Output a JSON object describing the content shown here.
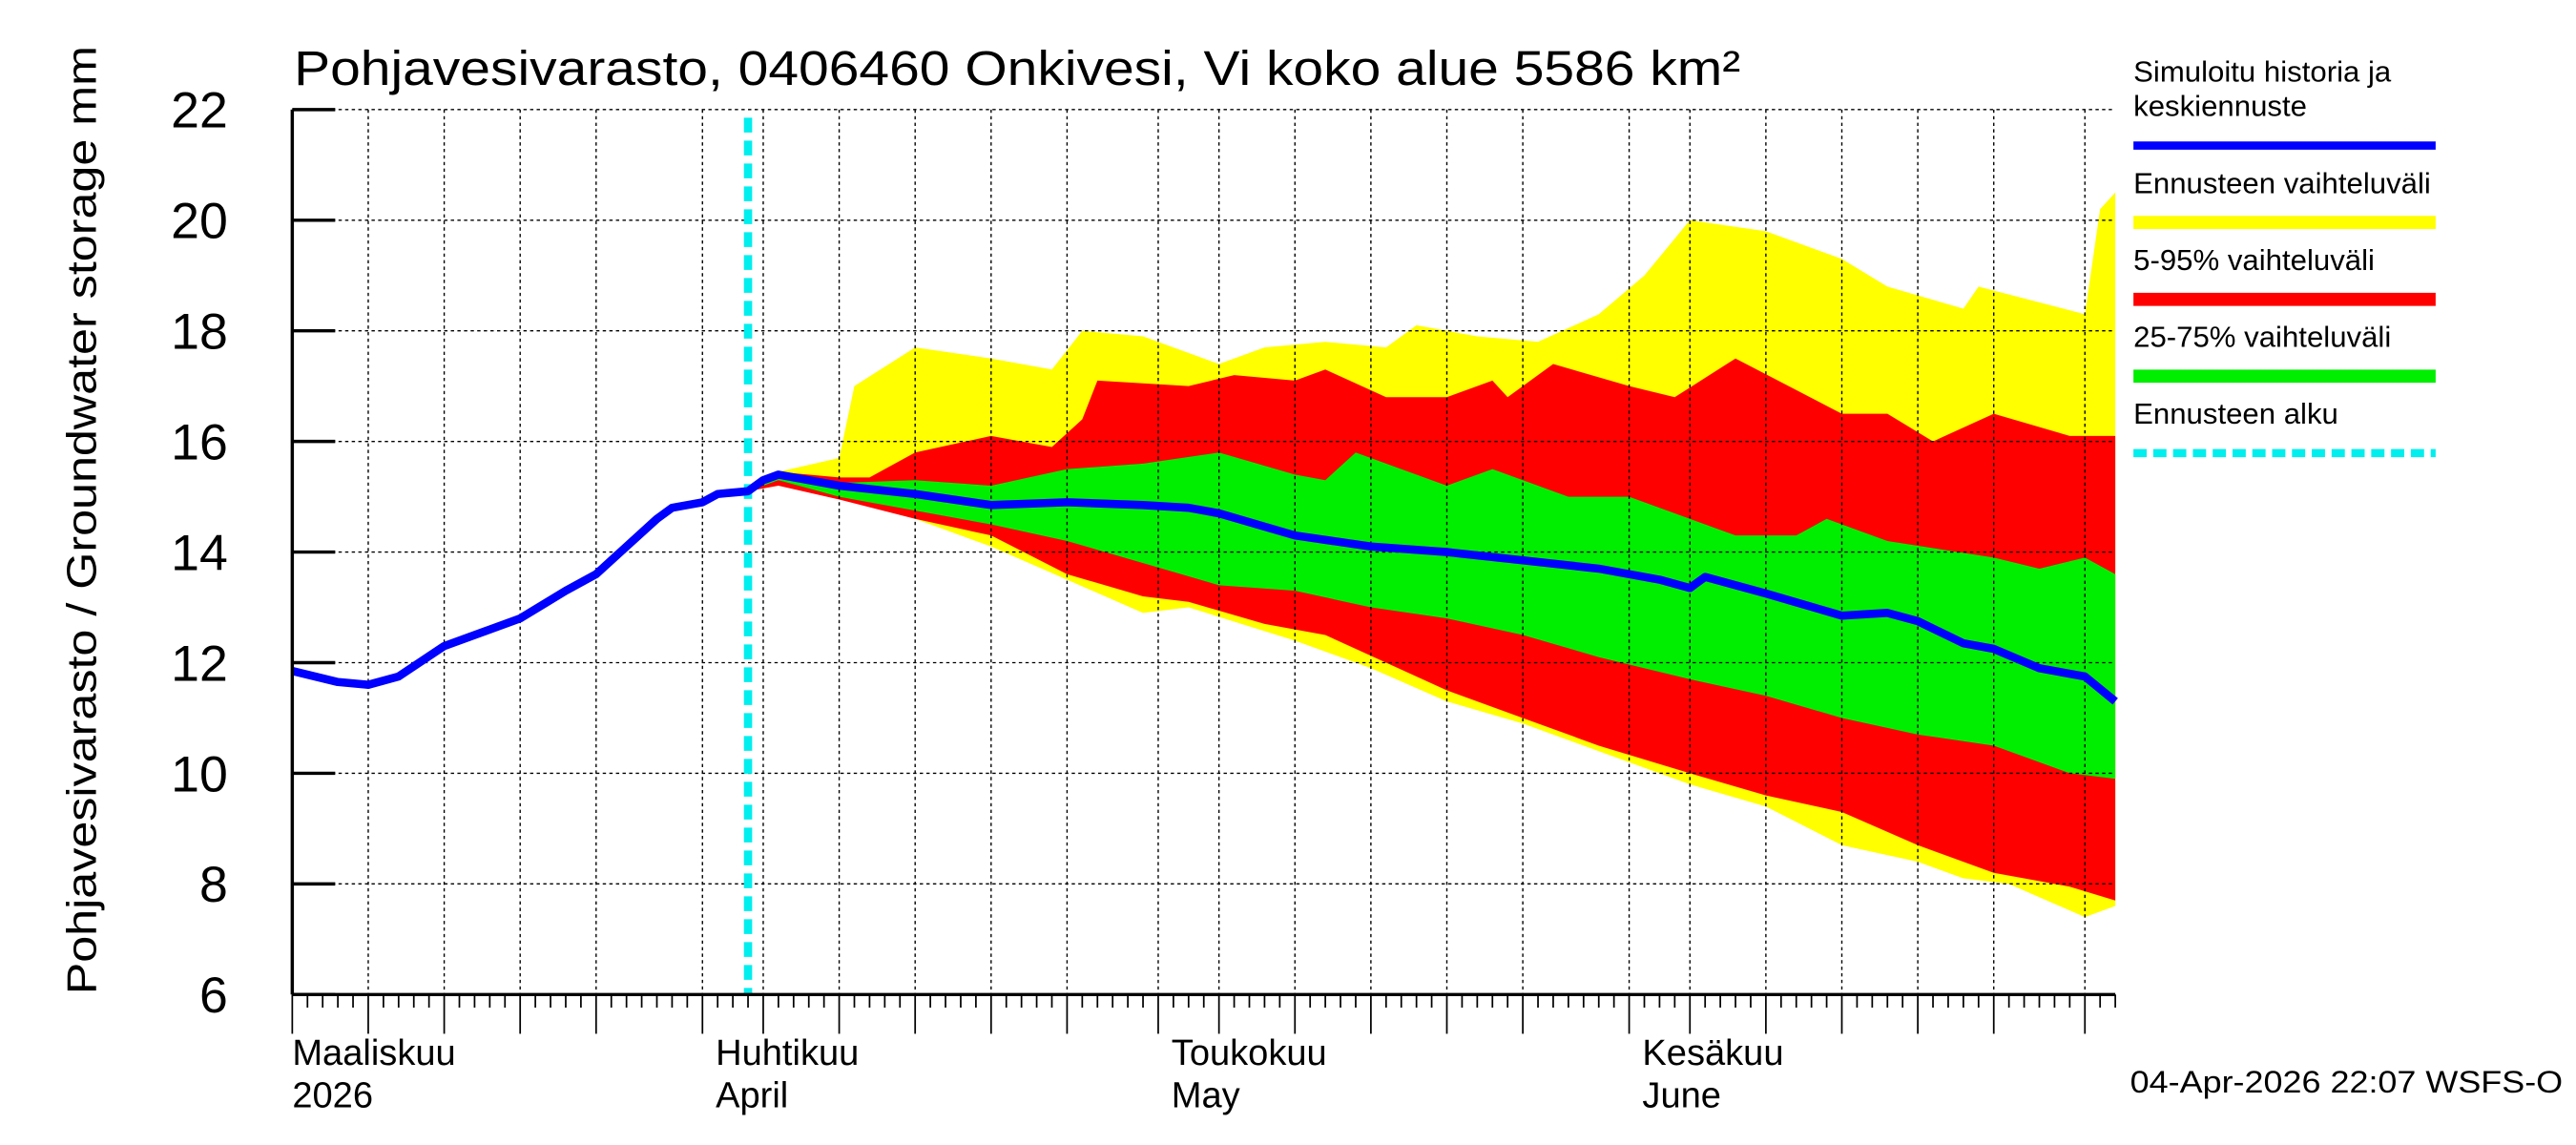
{
  "chart_data": {
    "type": "area",
    "title": "Pohjavesivarasto, 0406460 Onkivesi, Vi koko alue 5586 km²",
    "ylabel": "Pohjavesivarasto / Groundwater storage   mm",
    "ylim": [
      6,
      22
    ],
    "yticks": [
      6,
      8,
      10,
      12,
      14,
      16,
      18,
      20,
      22
    ],
    "xlim": [
      "2026-03-05",
      "2026-07-03"
    ],
    "grid": true,
    "legend_placement": "right",
    "month_labels": [
      {
        "line1": "Maaliskuu",
        "line2": "2026",
        "date": "2026-03-01"
      },
      {
        "line1": "Huhtikuu",
        "line2": "April",
        "date": "2026-04-01"
      },
      {
        "line1": "Toukokuu",
        "line2": "May",
        "date": "2026-05-01"
      },
      {
        "line1": "Kesäkuu",
        "line2": "June",
        "date": "2026-06-01"
      }
    ],
    "forecast_start": "2026-04-04",
    "footer": "04-Apr-2026 22:07 WSFS-O",
    "legend": [
      {
        "label": "Simuloitu historia ja",
        "label2": "keskiennuste",
        "color": "#0000ff",
        "style": "line"
      },
      {
        "label": "Ennusteen vaihteluväli",
        "color": "#ffff00",
        "style": "band"
      },
      {
        "label": "5-95% vaihteluväli",
        "color": "#ff0000",
        "style": "band"
      },
      {
        "label": "25-75% vaihteluväli",
        "color": "#00ee00",
        "style": "band"
      },
      {
        "label": "Ennusteen alku",
        "color": "#00eeee",
        "style": "dashed"
      }
    ],
    "bands": [
      {
        "name": "Ennusteen vaihteluväli",
        "color": "#ffff00",
        "upper": [
          [
            "2026-04-04",
            15.1
          ],
          [
            "2026-04-06",
            15.45
          ],
          [
            "2026-04-10",
            15.7
          ],
          [
            "2026-04-11",
            17.0
          ],
          [
            "2026-04-15",
            17.7
          ],
          [
            "2026-04-20",
            17.5
          ],
          [
            "2026-04-24",
            17.3
          ],
          [
            "2026-04-26",
            18.0
          ],
          [
            "2026-04-30",
            17.9
          ],
          [
            "2026-05-05",
            17.4
          ],
          [
            "2026-05-08",
            17.7
          ],
          [
            "2026-05-12",
            17.8
          ],
          [
            "2026-05-16",
            17.7
          ],
          [
            "2026-05-18",
            18.1
          ],
          [
            "2026-05-22",
            17.9
          ],
          [
            "2026-05-26",
            17.8
          ],
          [
            "2026-05-30",
            18.3
          ],
          [
            "2026-06-02",
            19.0
          ],
          [
            "2026-06-05",
            20.0
          ],
          [
            "2026-06-10",
            19.8
          ],
          [
            "2026-06-15",
            19.3
          ],
          [
            "2026-06-18",
            18.8
          ],
          [
            "2026-06-23",
            18.4
          ],
          [
            "2026-06-24",
            18.8
          ],
          [
            "2026-07-01",
            18.3
          ],
          [
            "2026-07-02",
            20.2
          ],
          [
            "2026-07-03",
            20.5
          ]
        ],
        "lower": [
          [
            "2026-04-04",
            15.1
          ],
          [
            "2026-04-06",
            15.2
          ],
          [
            "2026-04-10",
            15.0
          ],
          [
            "2026-04-15",
            14.6
          ],
          [
            "2026-04-20",
            14.1
          ],
          [
            "2026-04-25",
            13.5
          ],
          [
            "2026-04-30",
            12.9
          ],
          [
            "2026-05-03",
            13.0
          ],
          [
            "2026-05-10",
            12.4
          ],
          [
            "2026-05-15",
            11.9
          ],
          [
            "2026-05-20",
            11.3
          ],
          [
            "2026-05-25",
            10.9
          ],
          [
            "2026-05-30",
            10.4
          ],
          [
            "2026-06-05",
            9.8
          ],
          [
            "2026-06-10",
            9.4
          ],
          [
            "2026-06-15",
            8.7
          ],
          [
            "2026-06-20",
            8.4
          ],
          [
            "2026-06-23",
            8.1
          ],
          [
            "2026-06-26",
            8.0
          ],
          [
            "2026-07-01",
            7.4
          ],
          [
            "2026-07-03",
            7.6
          ]
        ]
      },
      {
        "name": "5-95% vaihteluväli",
        "color": "#ff0000",
        "upper": [
          [
            "2026-04-04",
            15.1
          ],
          [
            "2026-04-06",
            15.45
          ],
          [
            "2026-04-10",
            15.35
          ],
          [
            "2026-04-12",
            15.35
          ],
          [
            "2026-04-15",
            15.8
          ],
          [
            "2026-04-20",
            16.1
          ],
          [
            "2026-04-24",
            15.9
          ],
          [
            "2026-04-26",
            16.4
          ],
          [
            "2026-04-27",
            17.1
          ],
          [
            "2026-05-03",
            17.0
          ],
          [
            "2026-05-06",
            17.2
          ],
          [
            "2026-05-10",
            17.1
          ],
          [
            "2026-05-12",
            17.3
          ],
          [
            "2026-05-16",
            16.8
          ],
          [
            "2026-05-20",
            16.8
          ],
          [
            "2026-05-23",
            17.1
          ],
          [
            "2026-05-24",
            16.8
          ],
          [
            "2026-05-27",
            17.4
          ],
          [
            "2026-06-01",
            17.0
          ],
          [
            "2026-06-04",
            16.8
          ],
          [
            "2026-06-08",
            17.5
          ],
          [
            "2026-06-15",
            16.5
          ],
          [
            "2026-06-18",
            16.5
          ],
          [
            "2026-06-21",
            16.0
          ],
          [
            "2026-06-25",
            16.5
          ],
          [
            "2026-06-30",
            16.1
          ],
          [
            "2026-07-03",
            16.1
          ]
        ],
        "lower": [
          [
            "2026-04-04",
            15.1
          ],
          [
            "2026-04-06",
            15.2
          ],
          [
            "2026-04-10",
            14.95
          ],
          [
            "2026-04-15",
            14.6
          ],
          [
            "2026-04-20",
            14.3
          ],
          [
            "2026-04-25",
            13.6
          ],
          [
            "2026-04-30",
            13.2
          ],
          [
            "2026-05-03",
            13.1
          ],
          [
            "2026-05-08",
            12.7
          ],
          [
            "2026-05-12",
            12.5
          ],
          [
            "2026-05-16",
            12.0
          ],
          [
            "2026-05-20",
            11.5
          ],
          [
            "2026-05-25",
            11.0
          ],
          [
            "2026-05-30",
            10.5
          ],
          [
            "2026-06-05",
            10.0
          ],
          [
            "2026-06-10",
            9.6
          ],
          [
            "2026-06-15",
            9.3
          ],
          [
            "2026-06-20",
            8.7
          ],
          [
            "2026-06-25",
            8.2
          ],
          [
            "2026-06-30",
            7.95
          ],
          [
            "2026-07-03",
            7.7
          ]
        ]
      },
      {
        "name": "25-75% vaihteluväli",
        "color": "#00ee00",
        "upper": [
          [
            "2026-04-04",
            15.1
          ],
          [
            "2026-04-06",
            15.4
          ],
          [
            "2026-04-10",
            15.25
          ],
          [
            "2026-04-15",
            15.3
          ],
          [
            "2026-04-20",
            15.2
          ],
          [
            "2026-04-25",
            15.5
          ],
          [
            "2026-04-30",
            15.6
          ],
          [
            "2026-05-05",
            15.8
          ],
          [
            "2026-05-10",
            15.4
          ],
          [
            "2026-05-12",
            15.3
          ],
          [
            "2026-05-14",
            15.8
          ],
          [
            "2026-05-20",
            15.2
          ],
          [
            "2026-05-23",
            15.5
          ],
          [
            "2026-05-28",
            15.0
          ],
          [
            "2026-06-01",
            15.0
          ],
          [
            "2026-06-05",
            14.6
          ],
          [
            "2026-06-08",
            14.3
          ],
          [
            "2026-06-12",
            14.3
          ],
          [
            "2026-06-14",
            14.6
          ],
          [
            "2026-06-18",
            14.2
          ],
          [
            "2026-06-25",
            13.9
          ],
          [
            "2026-06-28",
            13.7
          ],
          [
            "2026-07-01",
            13.9
          ],
          [
            "2026-07-03",
            13.6
          ]
        ],
        "lower": [
          [
            "2026-04-04",
            15.1
          ],
          [
            "2026-04-06",
            15.3
          ],
          [
            "2026-04-10",
            15.0
          ],
          [
            "2026-04-15",
            14.75
          ],
          [
            "2026-04-20",
            14.5
          ],
          [
            "2026-04-25",
            14.2
          ],
          [
            "2026-04-30",
            13.8
          ],
          [
            "2026-05-05",
            13.4
          ],
          [
            "2026-05-10",
            13.3
          ],
          [
            "2026-05-15",
            13.0
          ],
          [
            "2026-05-20",
            12.8
          ],
          [
            "2026-05-25",
            12.5
          ],
          [
            "2026-05-30",
            12.1
          ],
          [
            "2026-06-05",
            11.7
          ],
          [
            "2026-06-10",
            11.4
          ],
          [
            "2026-06-15",
            11.0
          ],
          [
            "2026-06-20",
            10.7
          ],
          [
            "2026-06-25",
            10.5
          ],
          [
            "2026-06-30",
            10.0
          ],
          [
            "2026-07-03",
            9.9
          ]
        ]
      }
    ],
    "series": [
      {
        "name": "Simuloitu historia ja keskiennuste",
        "color": "#0000ff",
        "points": [
          [
            "2026-03-05",
            11.85
          ],
          [
            "2026-03-08",
            11.65
          ],
          [
            "2026-03-10",
            11.6
          ],
          [
            "2026-03-12",
            11.75
          ],
          [
            "2026-03-15",
            12.3
          ],
          [
            "2026-03-18",
            12.6
          ],
          [
            "2026-03-20",
            12.8
          ],
          [
            "2026-03-23",
            13.3
          ],
          [
            "2026-03-25",
            13.6
          ],
          [
            "2026-03-27",
            14.1
          ],
          [
            "2026-03-29",
            14.6
          ],
          [
            "2026-03-30",
            14.8
          ],
          [
            "2026-04-01",
            14.9
          ],
          [
            "2026-04-02",
            15.05
          ],
          [
            "2026-04-04",
            15.1
          ],
          [
            "2026-04-05",
            15.3
          ],
          [
            "2026-04-06",
            15.4
          ],
          [
            "2026-04-10",
            15.2
          ],
          [
            "2026-04-15",
            15.05
          ],
          [
            "2026-04-20",
            14.85
          ],
          [
            "2026-04-25",
            14.9
          ],
          [
            "2026-04-30",
            14.85
          ],
          [
            "2026-05-03",
            14.8
          ],
          [
            "2026-05-05",
            14.7
          ],
          [
            "2026-05-10",
            14.3
          ],
          [
            "2026-05-15",
            14.1
          ],
          [
            "2026-05-20",
            14.0
          ],
          [
            "2026-05-25",
            13.85
          ],
          [
            "2026-05-30",
            13.7
          ],
          [
            "2026-06-03",
            13.5
          ],
          [
            "2026-06-05",
            13.35
          ],
          [
            "2026-06-06",
            13.55
          ],
          [
            "2026-06-10",
            13.25
          ],
          [
            "2026-06-15",
            12.85
          ],
          [
            "2026-06-18",
            12.9
          ],
          [
            "2026-06-20",
            12.75
          ],
          [
            "2026-06-23",
            12.35
          ],
          [
            "2026-06-25",
            12.25
          ],
          [
            "2026-06-28",
            11.9
          ],
          [
            "2026-07-01",
            11.75
          ],
          [
            "2026-07-03",
            11.3
          ]
        ]
      }
    ]
  }
}
